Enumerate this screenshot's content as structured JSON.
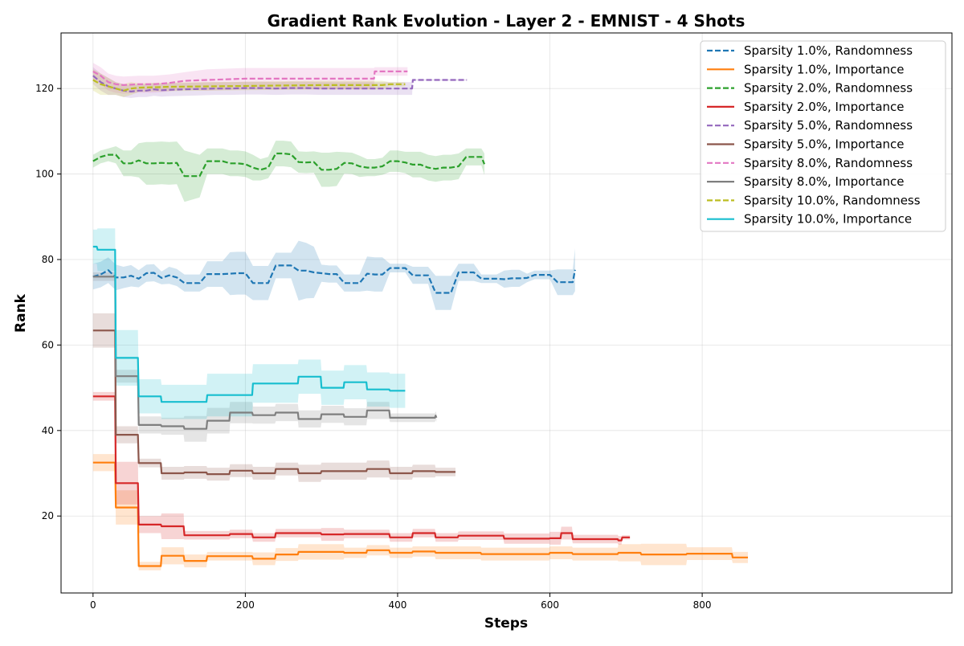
{
  "chart_data": {
    "type": "line",
    "title": "Gradient Rank Evolution - Layer 2 - EMNIST - 4 Shots",
    "xlabel": "Steps",
    "ylabel": "Rank",
    "xlim": [
      -42,
      1128
    ],
    "ylim": [
      2,
      133
    ],
    "xticks": [
      0,
      200,
      400,
      600,
      800
    ],
    "yticks": [
      20,
      40,
      60,
      80,
      100,
      120
    ],
    "grid": true,
    "legend_position": "top-right",
    "series": [
      {
        "name": "Sparsity 1.0%, Randomness",
        "color": "#1f77b4",
        "dashed": true,
        "x": [
          0,
          10,
          20,
          30,
          40,
          50,
          60,
          70,
          80,
          90,
          100,
          110,
          120,
          130,
          140,
          150,
          160,
          170,
          180,
          190,
          200,
          210,
          220,
          230,
          240,
          250,
          260,
          270,
          280,
          290,
          300,
          310,
          320,
          330,
          340,
          350,
          360,
          370,
          380,
          390,
          400,
          410,
          420,
          430,
          440,
          450,
          460,
          470,
          480,
          490,
          500,
          510,
          520,
          530,
          540,
          550,
          560,
          570,
          580,
          590,
          600,
          610,
          620,
          630,
          633
        ],
        "y": [
          76,
          76.5,
          77.5,
          75.8,
          75.8,
          76.2,
          75.5,
          76.8,
          76.9,
          75.7,
          76.3,
          75.8,
          74.5,
          74.5,
          74.5,
          76.6,
          76.6,
          76.6,
          76.7,
          76.8,
          76.8,
          74.5,
          74.5,
          74.5,
          78.6,
          78.6,
          78.6,
          77.4,
          77.4,
          77,
          76.8,
          76.6,
          76.6,
          74.5,
          74.5,
          74.5,
          76.7,
          76.5,
          76.5,
          78,
          78,
          78,
          76.3,
          76.3,
          76.3,
          72.2,
          72.2,
          72.2,
          77,
          77,
          77,
          75.5,
          75.5,
          75.5,
          75.4,
          75.6,
          75.6,
          75.7,
          76.4,
          76.4,
          76.4,
          74.7,
          74.7,
          74.7,
          77.6
        ],
        "band": [
          3,
          3,
          3,
          3,
          2.5,
          2.5,
          2,
          2,
          2,
          1.5,
          2,
          2,
          2,
          2,
          2,
          3,
          3,
          3,
          5,
          5,
          5,
          4,
          4,
          4,
          3,
          3,
          3,
          7,
          6.5,
          6,
          2,
          2,
          2,
          2,
          2,
          2,
          4,
          4,
          4,
          1,
          1,
          1,
          2,
          2,
          2,
          4,
          4,
          4,
          2,
          2,
          2,
          1,
          1,
          1,
          2,
          2,
          2,
          1,
          1,
          1,
          1,
          3,
          3,
          3,
          5
        ]
      },
      {
        "name": "Sparsity 1.0%, Importance",
        "color": "#ff7f0e",
        "dashed": false,
        "x": [
          0,
          29,
          30,
          59,
          60,
          89,
          90,
          119,
          120,
          149,
          150,
          209,
          210,
          239,
          240,
          269,
          270,
          329,
          330,
          359,
          360,
          389,
          390,
          419,
          420,
          449,
          450,
          509,
          510,
          599,
          600,
          629,
          630,
          689,
          690,
          719,
          720,
          779,
          780,
          839,
          840,
          860
        ],
        "y": [
          32.5,
          32.5,
          22,
          22,
          8.3,
          8.3,
          10.7,
          10.7,
          9.5,
          9.5,
          10.6,
          10.6,
          10,
          10,
          11,
          11,
          11.6,
          11.6,
          11.4,
          11.4,
          12,
          12,
          11.4,
          11.4,
          11.7,
          11.7,
          11.4,
          11.4,
          11.1,
          11.1,
          11.4,
          11.4,
          11.1,
          11.1,
          11.4,
          11.4,
          11,
          11,
          11.2,
          11.2,
          10.3,
          10.3
        ],
        "band": [
          2,
          2,
          4,
          4,
          1,
          1,
          2,
          2,
          1.5,
          1.5,
          1,
          1,
          1.5,
          1.5,
          1.5,
          1.5,
          1.8,
          1.8,
          1.2,
          1.2,
          1.2,
          1.2,
          1.2,
          1.2,
          1.2,
          1.2,
          1.5,
          1.5,
          1.5,
          1.5,
          1.5,
          1.5,
          1.5,
          1.5,
          2,
          2,
          2.5,
          2.5,
          1.5,
          1.5,
          1.3,
          1.3
        ]
      },
      {
        "name": "Sparsity 2.0%, Randomness",
        "color": "#2ca02c",
        "dashed": true,
        "x": [
          0,
          10,
          20,
          30,
          40,
          50,
          60,
          70,
          80,
          90,
          100,
          110,
          120,
          130,
          140,
          150,
          160,
          170,
          180,
          190,
          200,
          210,
          220,
          230,
          240,
          250,
          260,
          270,
          280,
          290,
          300,
          310,
          320,
          330,
          340,
          350,
          360,
          370,
          380,
          390,
          400,
          410,
          420,
          430,
          440,
          450,
          460,
          470,
          480,
          490,
          500,
          510,
          514
        ],
        "y": [
          103,
          104,
          104.5,
          104.5,
          102.5,
          102.5,
          103.2,
          102.5,
          102.5,
          102.6,
          102.5,
          102.6,
          99.5,
          99.5,
          99.5,
          103,
          103,
          103,
          102.5,
          102.5,
          102.3,
          101.5,
          101,
          101.5,
          104.8,
          104.8,
          104.6,
          102.8,
          102.7,
          102.8,
          101,
          101,
          101.2,
          102.6,
          102.5,
          101.8,
          101.5,
          101.5,
          101.8,
          103,
          103,
          102.7,
          102.2,
          102.2,
          101.5,
          101.2,
          101.5,
          101.5,
          101.8,
          104,
          104,
          104,
          102.3
        ],
        "band": [
          1.5,
          1.5,
          1.5,
          2,
          3,
          3,
          4,
          5,
          5,
          5,
          5,
          5,
          6,
          5.5,
          5,
          3,
          3,
          3,
          3,
          3,
          3,
          3,
          2.5,
          2.5,
          3,
          3,
          3,
          2.5,
          2.5,
          2.5,
          4,
          4,
          4,
          2.5,
          2.5,
          2.5,
          2,
          2,
          2,
          2.5,
          2.5,
          2.5,
          3,
          3,
          3,
          3,
          3,
          3,
          3,
          2,
          2,
          2,
          2.5
        ]
      },
      {
        "name": "Sparsity 2.0%, Importance",
        "color": "#d62728",
        "dashed": false,
        "x": [
          0,
          29,
          30,
          59,
          60,
          89,
          90,
          119,
          120,
          179,
          180,
          209,
          210,
          239,
          240,
          299,
          300,
          329,
          330,
          389,
          390,
          419,
          420,
          449,
          450,
          479,
          480,
          539,
          540,
          599,
          600,
          614,
          615,
          629,
          630,
          689,
          690,
          694,
          695,
          705
        ],
        "y": [
          48,
          48,
          27.7,
          27.7,
          18,
          18,
          17.6,
          17.6,
          15.5,
          15.5,
          15.8,
          15.8,
          15,
          15,
          16,
          16,
          15.7,
          15.7,
          15.8,
          15.8,
          15,
          15,
          16,
          16,
          15,
          15,
          15.4,
          15.4,
          14.7,
          14.7,
          14.8,
          14.8,
          16,
          16,
          14.6,
          14.6,
          14.3,
          14.3,
          15,
          15
        ],
        "band": [
          1,
          1,
          5,
          5,
          2,
          2,
          3,
          3,
          1,
          1,
          1,
          1,
          1,
          1,
          1,
          1,
          1.5,
          1.5,
          1,
          1,
          1,
          1,
          1,
          1,
          1,
          1,
          1,
          1,
          1.2,
          1.2,
          1.5,
          1.5,
          1.5,
          1.5,
          1,
          1,
          1,
          1,
          0.5,
          0.5
        ]
      },
      {
        "name": "Sparsity 5.0%, Randomness",
        "color": "#9467bd",
        "dashed": true,
        "x": [
          0,
          10,
          20,
          30,
          40,
          50,
          60,
          70,
          80,
          90,
          100,
          120,
          140,
          160,
          180,
          200,
          220,
          240,
          260,
          280,
          300,
          320,
          340,
          360,
          380,
          400,
          419,
          420,
          430,
          440,
          460,
          480,
          491
        ],
        "y": [
          123,
          121.5,
          120.5,
          120,
          119.5,
          119.3,
          119.5,
          119.5,
          119.8,
          119.6,
          119.7,
          119.8,
          119.9,
          120,
          120,
          120.1,
          120.1,
          120,
          120.1,
          120.1,
          120,
          120,
          120,
          120,
          120,
          120,
          120,
          122,
          122,
          122,
          122,
          122,
          122
        ],
        "band": [
          2,
          2,
          2,
          1.5,
          1.5,
          1.5,
          1.5,
          1.5,
          1.5,
          1.5,
          1.5,
          1.5,
          1.5,
          1.5,
          1.5,
          1.5,
          1.5,
          1.5,
          1.5,
          1.5,
          1.5,
          1.5,
          1.5,
          1.5,
          1.5,
          1.5,
          1.5,
          0.1,
          0.1,
          0.1,
          0.1,
          0.1,
          0.1
        ]
      },
      {
        "name": "Sparsity 5.0%, Importance",
        "color": "#8c564b",
        "dashed": false,
        "x": [
          0,
          29,
          30,
          59,
          60,
          89,
          90,
          119,
          120,
          149,
          150,
          179,
          180,
          209,
          210,
          239,
          240,
          269,
          270,
          299,
          300,
          359,
          360,
          389,
          390,
          419,
          420,
          449,
          450,
          476
        ],
        "y": [
          63.4,
          63.4,
          39,
          39,
          32.4,
          32.4,
          30,
          30,
          30.2,
          30.2,
          29.8,
          29.8,
          30.6,
          30.6,
          30,
          30,
          31,
          31,
          30,
          30,
          30.5,
          30.5,
          31,
          31,
          30,
          30,
          30.5,
          30.5,
          30.3,
          30.3
        ],
        "band": [
          4,
          4,
          2,
          2,
          1,
          1,
          1.5,
          1.5,
          1.5,
          1.5,
          1.5,
          1.5,
          1.5,
          1.5,
          1.5,
          1.5,
          1.5,
          1.5,
          2,
          2,
          2,
          2,
          2,
          2,
          1.5,
          1.5,
          1.5,
          1.5,
          1,
          1
        ]
      },
      {
        "name": "Sparsity 8.0%, Randomness",
        "color": "#e377c2",
        "dashed": true,
        "x": [
          0,
          10,
          20,
          30,
          40,
          60,
          80,
          100,
          120,
          150,
          200,
          250,
          300,
          350,
          369,
          370,
          390,
          413
        ],
        "y": [
          124,
          123,
          121.5,
          121,
          120.8,
          121,
          121,
          121.3,
          121.8,
          122,
          122.3,
          122.3,
          122.3,
          122.3,
          122.3,
          124,
          124,
          124
        ],
        "band": [
          2,
          2,
          2,
          2,
          2,
          2,
          2,
          2,
          2,
          2.5,
          2.5,
          2.5,
          2.5,
          2.5,
          2.5,
          1,
          1,
          1
        ]
      },
      {
        "name": "Sparsity 8.0%, Importance",
        "color": "#7f7f7f",
        "dashed": false,
        "x": [
          0,
          29,
          30,
          59,
          60,
          89,
          90,
          119,
          120,
          149,
          150,
          179,
          180,
          209,
          210,
          239,
          240,
          269,
          270,
          299,
          300,
          329,
          330,
          359,
          360,
          389,
          390,
          419,
          420,
          449,
          450,
          451
        ],
        "y": [
          76,
          76,
          52.7,
          52.7,
          41.3,
          41.3,
          41,
          41,
          40.4,
          40.4,
          42.3,
          42.3,
          44.2,
          44.2,
          43.6,
          43.6,
          44.2,
          44.2,
          42.7,
          42.7,
          43.8,
          43.8,
          43.2,
          43.2,
          44.7,
          44.7,
          43,
          43,
          43,
          43,
          43.5,
          43
        ],
        "band": [
          1,
          1,
          1.5,
          1.5,
          2,
          2,
          2,
          2,
          3,
          3,
          3,
          3,
          2.5,
          2.5,
          2,
          2,
          2,
          2,
          2,
          2,
          2,
          2,
          2,
          2,
          2,
          2,
          1,
          1,
          1,
          1,
          1,
          1
        ]
      },
      {
        "name": "Sparsity 10.0%, Randomness",
        "color": "#bcbd22",
        "dashed": true,
        "x": [
          0,
          10,
          20,
          30,
          40,
          50,
          60,
          80,
          100,
          150,
          200,
          250,
          300,
          350,
          380,
          390,
          400,
          410
        ],
        "y": [
          122,
          121,
          120.5,
          120,
          119.5,
          120,
          120.2,
          120.3,
          120.4,
          120.5,
          120.6,
          120.7,
          120.8,
          120.8,
          120.8,
          121,
          121,
          121
        ],
        "band": [
          2.5,
          2.5,
          2,
          1.5,
          1.5,
          1.5,
          1,
          1,
          1,
          1,
          1,
          1,
          1,
          1,
          1,
          0.5,
          0.5,
          0.5
        ]
      },
      {
        "name": "Sparsity 10.0%, Importance",
        "color": "#17becf",
        "dashed": false,
        "x": [
          0,
          5,
          6,
          29,
          30,
          59,
          60,
          89,
          90,
          149,
          150,
          209,
          210,
          269,
          270,
          299,
          300,
          329,
          330,
          359,
          360,
          389,
          390,
          410
        ],
        "y": [
          83,
          83,
          82.3,
          82.3,
          57,
          57,
          48,
          48,
          46.7,
          46.7,
          48.3,
          48.3,
          51,
          51,
          52.6,
          52.6,
          50,
          50,
          51.3,
          51.3,
          49.6,
          49.6,
          49.3,
          49.3
        ],
        "band": [
          4,
          4,
          5,
          5,
          6.5,
          6.5,
          4,
          4,
          4,
          4,
          5,
          5,
          4.5,
          4.5,
          4,
          4,
          4,
          4,
          4,
          4,
          4,
          4,
          4,
          4
        ]
      }
    ]
  }
}
